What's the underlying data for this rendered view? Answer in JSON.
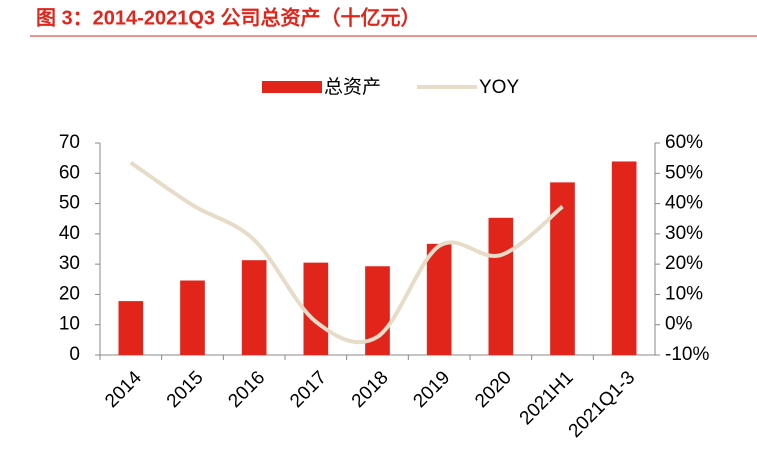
{
  "chart_data": {
    "type": "bar-line",
    "title": "图 3：2014-2021Q3 公司总资产（十亿元）",
    "categories": [
      "2014",
      "2015",
      "2016",
      "2017",
      "2018",
      "2019",
      "2020",
      "2021H1",
      "2021Q1-3"
    ],
    "series": [
      {
        "name": "总资产",
        "type": "bar",
        "color": "#e1251b",
        "values": [
          17.8,
          24.6,
          31.3,
          30.5,
          29.3,
          36.7,
          45.3,
          57.0,
          63.9
        ]
      },
      {
        "name": "YOY",
        "type": "line",
        "axis": "y2",
        "color": "#e6dcc8",
        "values": [
          53.5,
          39.5,
          28,
          1,
          -4,
          26,
          23,
          39,
          null
        ]
      }
    ],
    "ylim": [
      0,
      70
    ],
    "yticks": [
      0,
      10,
      20,
      30,
      40,
      50,
      60,
      70
    ],
    "y2lim": [
      -10,
      60
    ],
    "y2ticks": [
      {
        "value": -10,
        "label": "-10%"
      },
      {
        "value": 0,
        "label": "0%"
      },
      {
        "value": 10,
        "label": "10%"
      },
      {
        "value": 20,
        "label": "20%"
      },
      {
        "value": 30,
        "label": "30%"
      },
      {
        "value": 40,
        "label": "40%"
      },
      {
        "value": 50,
        "label": "50%"
      },
      {
        "value": 60,
        "label": "60%"
      }
    ],
    "legend": "top"
  }
}
